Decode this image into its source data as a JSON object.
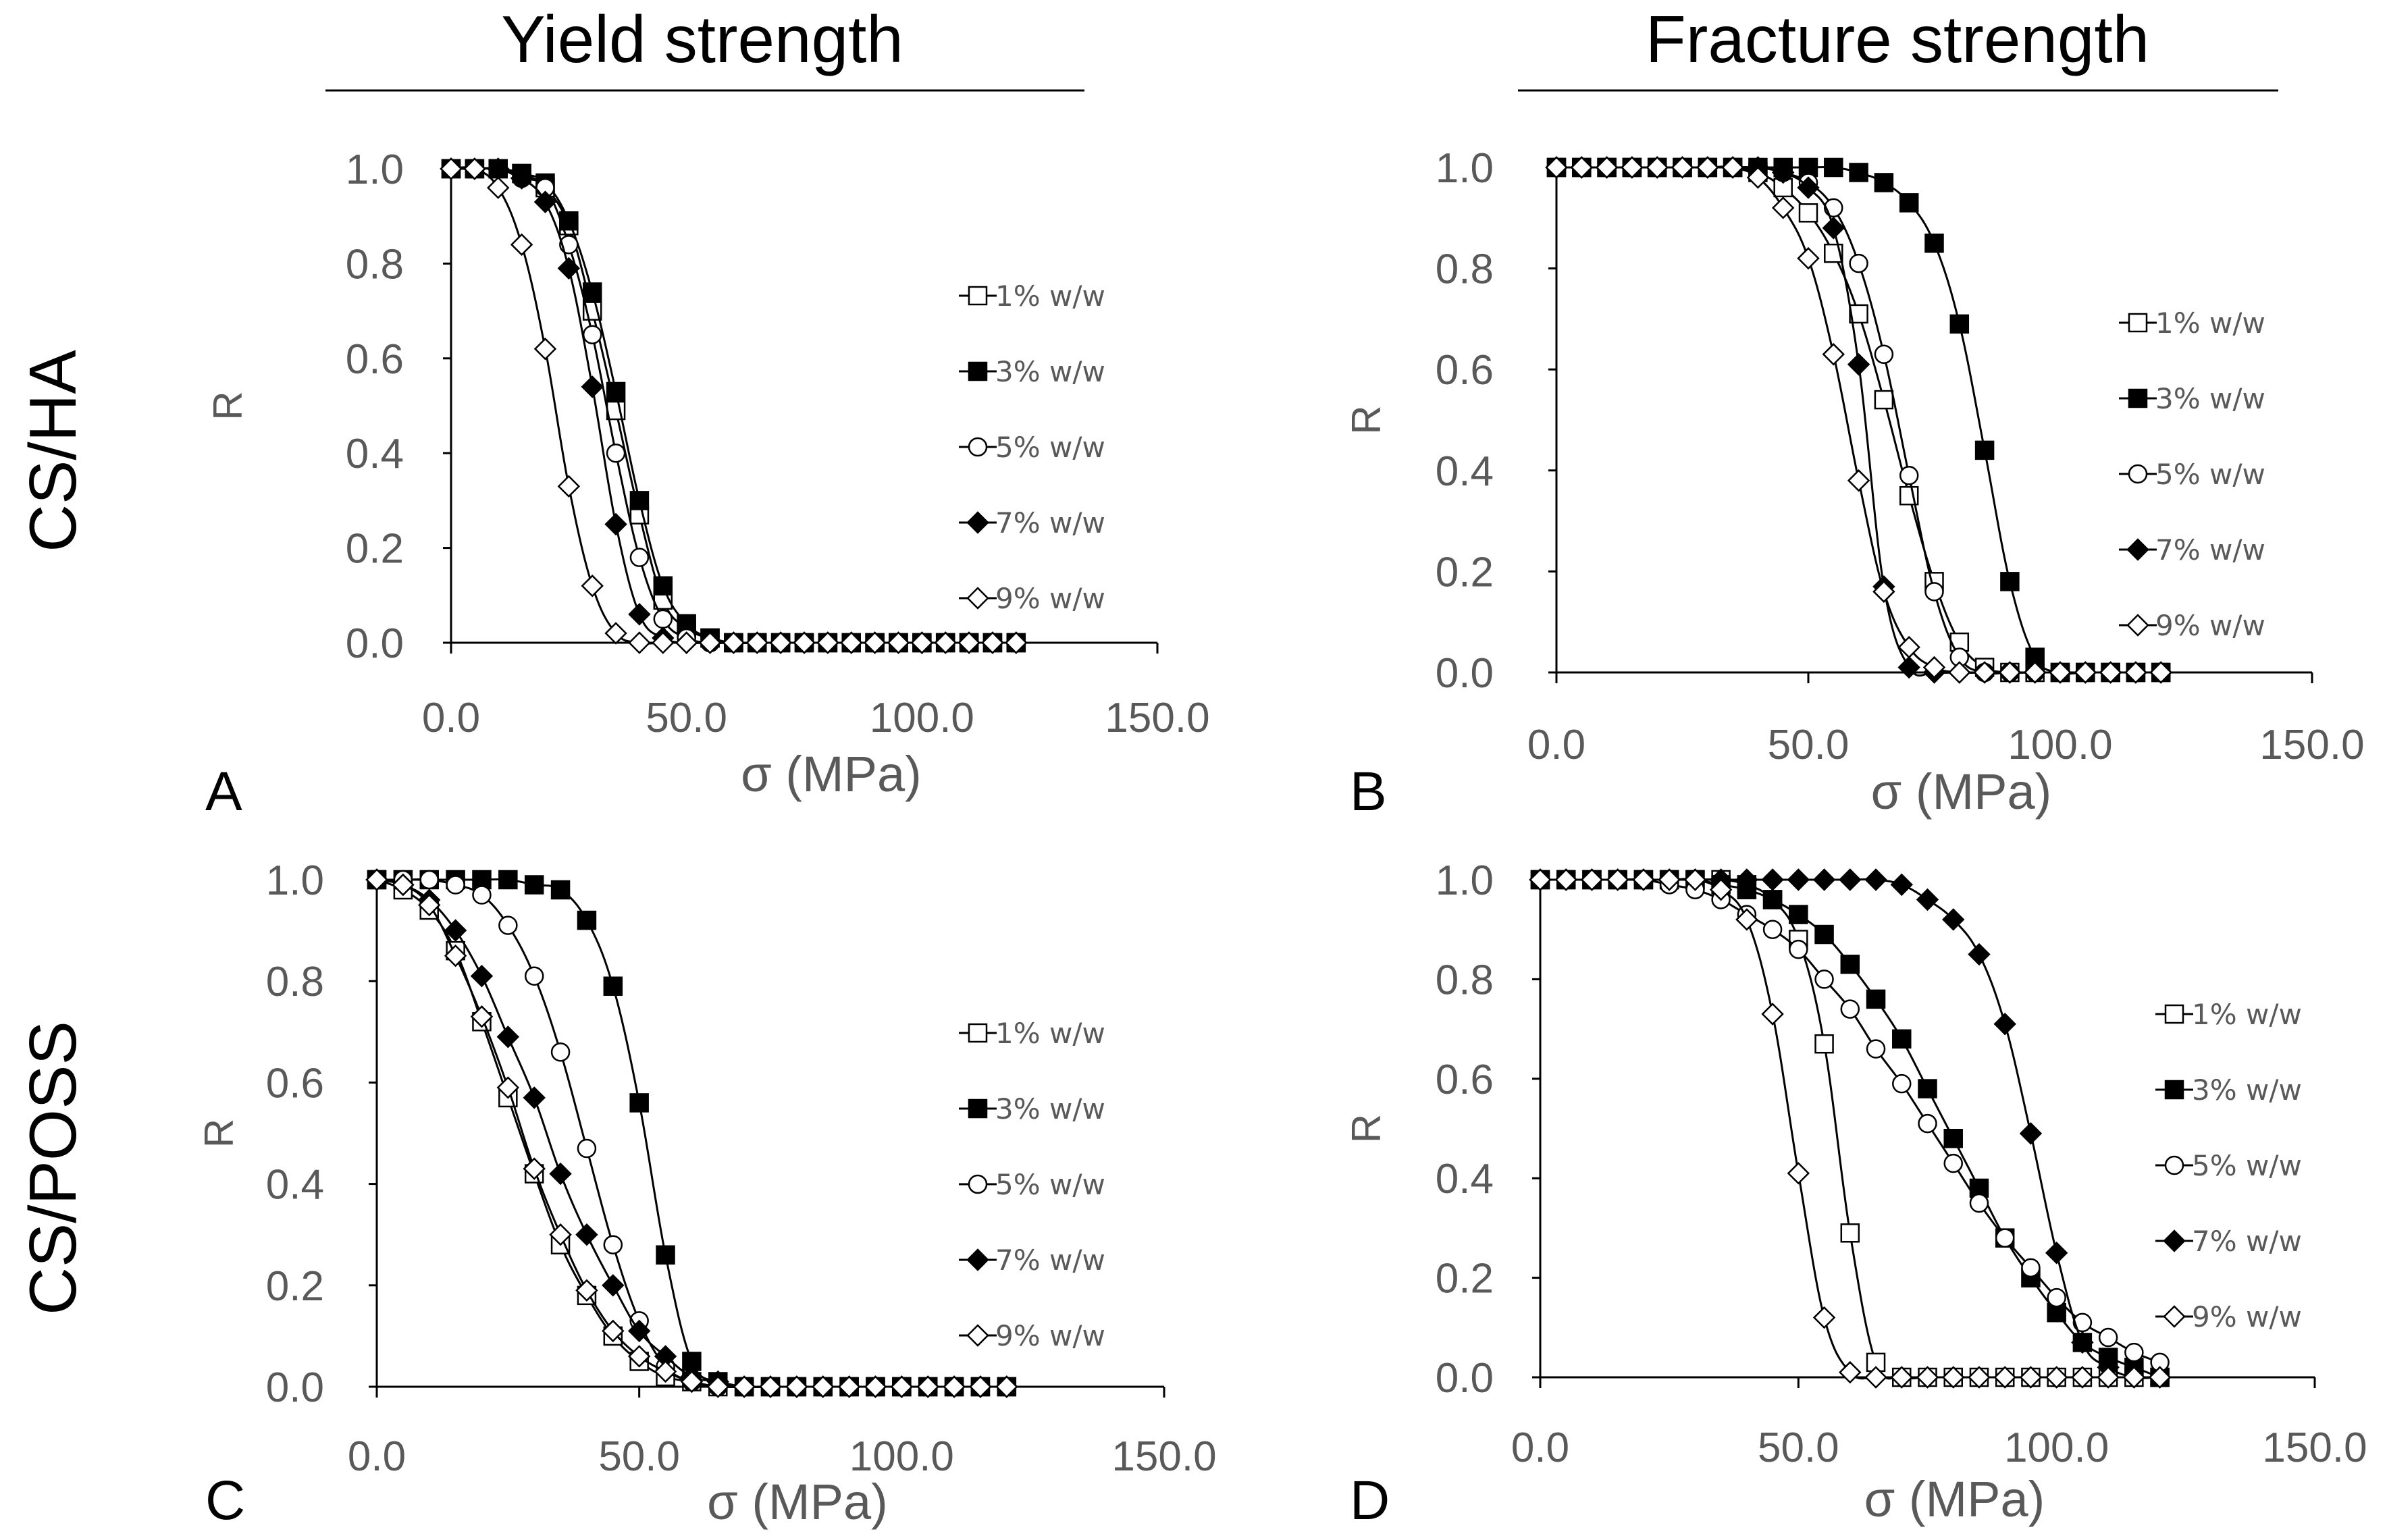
{
  "headers": {
    "col1": "Yield strength",
    "col2": "Fracture strength"
  },
  "rows": {
    "row1": "CS/HA",
    "row2": "CS/POSS"
  },
  "colors": {
    "text": "#000000",
    "tick": "#595959",
    "line": "#000000"
  },
  "legend_labels": [
    "1% w/w",
    "3% w/w",
    "5% w/w",
    "7% w/w",
    "9% w/w"
  ],
  "chart_data": [
    {
      "type": "scatter",
      "panel_label": "A",
      "xlabel": "σ  (MPa)",
      "ylabel": "R",
      "xlim": [
        0,
        150
      ],
      "ylim": [
        0,
        1
      ],
      "xticks": [
        "0.0",
        "50.0",
        "100.0",
        "150.0"
      ],
      "yticks": [
        "0.0",
        "0.2",
        "0.4",
        "0.6",
        "0.8",
        "1.0"
      ],
      "x": [
        0,
        5,
        10,
        15,
        20,
        25,
        30,
        35,
        40,
        45,
        50,
        55,
        60,
        65,
        70,
        75,
        80,
        85,
        90,
        95,
        100,
        105,
        110,
        115,
        120
      ],
      "series": [
        {
          "name": "1% w/w",
          "marker": "square-open",
          "values": [
            1,
            1,
            1,
            0.99,
            0.96,
            0.88,
            0.7,
            0.49,
            0.27,
            0.09,
            0.03,
            0.01,
            0,
            0,
            0,
            0,
            0,
            0,
            0,
            0,
            0,
            0,
            0,
            0,
            0
          ]
        },
        {
          "name": "3% w/w",
          "marker": "square-filled",
          "values": [
            1,
            1,
            1,
            0.99,
            0.97,
            0.89,
            0.74,
            0.53,
            0.3,
            0.12,
            0.04,
            0.01,
            0,
            0,
            0,
            0,
            0,
            0,
            0,
            0,
            0,
            0,
            0,
            0,
            0
          ]
        },
        {
          "name": "5% w/w",
          "marker": "circle-open",
          "values": [
            1,
            1,
            1,
            0.98,
            0.96,
            0.84,
            0.65,
            0.4,
            0.18,
            0.05,
            0.01,
            0,
            0,
            0,
            0,
            0,
            0,
            0,
            0,
            0,
            0,
            0,
            0,
            0,
            0
          ]
        },
        {
          "name": "7% w/w",
          "marker": "diamond-filled",
          "values": [
            1,
            1,
            1,
            0.98,
            0.93,
            0.79,
            0.54,
            0.25,
            0.06,
            0.01,
            0,
            0,
            0,
            0,
            0,
            0,
            0,
            0,
            0,
            0,
            0,
            0,
            0,
            0,
            0
          ]
        },
        {
          "name": "9% w/w",
          "marker": "diamond-open",
          "values": [
            1,
            1,
            0.96,
            0.84,
            0.62,
            0.33,
            0.12,
            0.02,
            0,
            0,
            0,
            0,
            0,
            0,
            0,
            0,
            0,
            0,
            0,
            0,
            0,
            0,
            0,
            0,
            0
          ]
        }
      ]
    },
    {
      "type": "scatter",
      "panel_label": "B",
      "xlabel": "σ (MPa)",
      "ylabel": "R",
      "xlim": [
        0,
        150
      ],
      "ylim": [
        0,
        1
      ],
      "xticks": [
        "0.0",
        "50.0",
        "100.0",
        "150.0"
      ],
      "yticks": [
        "0.0",
        "0.2",
        "0.4",
        "0.6",
        "0.8",
        "1.0"
      ],
      "x": [
        0,
        5,
        10,
        15,
        20,
        25,
        30,
        35,
        40,
        45,
        50,
        55,
        60,
        65,
        70,
        75,
        80,
        85,
        90,
        95,
        100,
        105,
        110,
        115,
        120
      ],
      "series": [
        {
          "name": "1% w/w",
          "marker": "square-open",
          "values": [
            1,
            1,
            1,
            1,
            1,
            1,
            1,
            1,
            0.99,
            0.96,
            0.91,
            0.83,
            0.71,
            0.54,
            0.35,
            0.18,
            0.06,
            0.01,
            0,
            0,
            0,
            0,
            0,
            0,
            0
          ]
        },
        {
          "name": "3% w/w",
          "marker": "square-filled",
          "values": [
            1,
            1,
            1,
            1,
            1,
            1,
            1,
            1,
            1,
            1,
            1,
            1,
            0.99,
            0.97,
            0.93,
            0.85,
            0.69,
            0.44,
            0.18,
            0.03,
            0,
            0,
            0,
            0,
            0
          ]
        },
        {
          "name": "5% w/w",
          "marker": "circle-open",
          "values": [
            1,
            1,
            1,
            1,
            1,
            1,
            1,
            1,
            1,
            0.99,
            0.97,
            0.92,
            0.81,
            0.63,
            0.39,
            0.16,
            0.03,
            0,
            0,
            0,
            0,
            0,
            0,
            0,
            0
          ]
        },
        {
          "name": "7% w/w",
          "marker": "diamond-filled",
          "values": [
            1,
            1,
            1,
            1,
            1,
            1,
            1,
            1,
            1,
            0.99,
            0.96,
            0.88,
            0.61,
            0.17,
            0.01,
            0,
            0,
            0,
            0,
            0,
            0,
            0,
            0,
            0,
            0
          ]
        },
        {
          "name": "9% w/w",
          "marker": "diamond-open",
          "values": [
            1,
            1,
            1,
            1,
            1,
            1,
            1,
            1,
            0.98,
            0.92,
            0.82,
            0.63,
            0.38,
            0.16,
            0.05,
            0.01,
            0,
            0,
            0,
            0,
            0,
            0,
            0,
            0,
            0
          ]
        }
      ]
    },
    {
      "type": "scatter",
      "panel_label": "C",
      "xlabel": "σ (MPa)",
      "ylabel": "R",
      "xlim": [
        0,
        150
      ],
      "ylim": [
        0,
        1
      ],
      "xticks": [
        "0.0",
        "50.0",
        "100.0",
        "150.0"
      ],
      "yticks": [
        "0.0",
        "0.2",
        "0.4",
        "0.6",
        "0.8",
        "1.0"
      ],
      "x": [
        0,
        5,
        10,
        15,
        20,
        25,
        30,
        35,
        40,
        45,
        50,
        55,
        60,
        65,
        70,
        75,
        80,
        85,
        90,
        95,
        100,
        105,
        110,
        115,
        120
      ],
      "series": [
        {
          "name": "1% w/w",
          "marker": "square-open",
          "values": [
            1,
            0.98,
            0.94,
            0.86,
            0.72,
            0.57,
            0.42,
            0.28,
            0.18,
            0.1,
            0.05,
            0.02,
            0.01,
            0,
            0,
            0,
            0,
            0,
            0,
            0,
            0,
            0,
            0,
            0,
            0
          ]
        },
        {
          "name": "3% w/w",
          "marker": "square-filled",
          "values": [
            1,
            1,
            1,
            1,
            1,
            1,
            0.99,
            0.98,
            0.92,
            0.79,
            0.56,
            0.26,
            0.05,
            0.01,
            0,
            0,
            0,
            0,
            0,
            0,
            0,
            0,
            0,
            0,
            0
          ]
        },
        {
          "name": "5% w/w",
          "marker": "circle-open",
          "values": [
            1,
            1,
            1,
            0.99,
            0.97,
            0.91,
            0.81,
            0.66,
            0.47,
            0.28,
            0.13,
            0.04,
            0.01,
            0,
            0,
            0,
            0,
            0,
            0,
            0,
            0,
            0,
            0,
            0,
            0
          ]
        },
        {
          "name": "7% w/w",
          "marker": "diamond-filled",
          "values": [
            1,
            0.99,
            0.96,
            0.9,
            0.81,
            0.69,
            0.57,
            0.42,
            0.3,
            0.2,
            0.11,
            0.06,
            0.02,
            0.01,
            0,
            0,
            0,
            0,
            0,
            0,
            0,
            0,
            0,
            0,
            0
          ]
        },
        {
          "name": "9% w/w",
          "marker": "diamond-open",
          "values": [
            1,
            0.99,
            0.95,
            0.85,
            0.73,
            0.59,
            0.43,
            0.3,
            0.19,
            0.11,
            0.06,
            0.03,
            0.01,
            0,
            0,
            0,
            0,
            0,
            0,
            0,
            0,
            0,
            0,
            0,
            0
          ]
        }
      ]
    },
    {
      "type": "scatter",
      "panel_label": "D",
      "xlabel": "σ (MPa)",
      "ylabel": "R",
      "xlim": [
        0,
        150
      ],
      "ylim": [
        0,
        1
      ],
      "xticks": [
        "0.0",
        "50.0",
        "100.0",
        "150.0"
      ],
      "yticks": [
        "0.0",
        "0.2",
        "0.4",
        "0.6",
        "0.8",
        "1.0"
      ],
      "x": [
        0,
        5,
        10,
        15,
        20,
        25,
        30,
        35,
        40,
        45,
        50,
        55,
        60,
        65,
        70,
        75,
        80,
        85,
        90,
        95,
        100,
        105,
        110,
        115,
        120
      ],
      "series": [
        {
          "name": "1% w/w",
          "marker": "square-open",
          "values": [
            1,
            1,
            1,
            1,
            1,
            1,
            1,
            1,
            0.99,
            0.96,
            0.88,
            0.67,
            0.29,
            0.03,
            0,
            0,
            0,
            0,
            0,
            0,
            0,
            0,
            0,
            0,
            0
          ]
        },
        {
          "name": "3% w/w",
          "marker": "square-filled",
          "values": [
            1,
            1,
            1,
            1,
            1,
            1,
            1,
            0.99,
            0.98,
            0.96,
            0.93,
            0.89,
            0.83,
            0.76,
            0.68,
            0.58,
            0.48,
            0.38,
            0.28,
            0.2,
            0.13,
            0.07,
            0.04,
            0.02,
            0
          ]
        },
        {
          "name": "5% w/w",
          "marker": "circle-open",
          "values": [
            1,
            1,
            1,
            1,
            1,
            0.99,
            0.98,
            0.96,
            0.93,
            0.9,
            0.86,
            0.8,
            0.74,
            0.66,
            0.59,
            0.51,
            0.43,
            0.35,
            0.28,
            0.22,
            0.16,
            0.11,
            0.08,
            0.05,
            0.03
          ]
        },
        {
          "name": "7% w/w",
          "marker": "diamond-filled",
          "values": [
            1,
            1,
            1,
            1,
            1,
            1,
            1,
            1,
            1,
            1,
            1,
            1,
            1,
            1,
            0.99,
            0.96,
            0.92,
            0.85,
            0.71,
            0.49,
            0.25,
            0.07,
            0.02,
            0,
            0
          ]
        },
        {
          "name": "9% w/w",
          "marker": "diamond-open",
          "values": [
            1,
            1,
            1,
            1,
            1,
            1,
            1,
            0.98,
            0.92,
            0.73,
            0.41,
            0.12,
            0.01,
            0,
            0,
            0,
            0,
            0,
            0,
            0,
            0,
            0,
            0,
            0,
            0
          ]
        }
      ]
    }
  ]
}
